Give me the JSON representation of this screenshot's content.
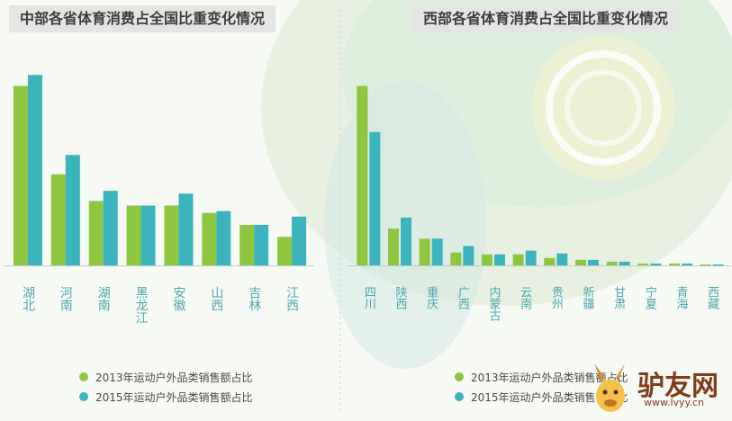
{
  "colors": {
    "series_2013": "#8ec63f",
    "series_2015": "#3bb4bd",
    "label": "#4fa8ae"
  },
  "chart_data": [
    {
      "type": "bar",
      "title": "中部各省体育消费占全国比重变化情况",
      "categories": [
        "湖北",
        "河南",
        "湖南",
        "黑龙江",
        "安徽",
        "山西",
        "吉林",
        "江西"
      ],
      "series": [
        {
          "name": "2013年运动户外品类销售额占比",
          "values": [
            19.5,
            9.9,
            7.0,
            6.5,
            6.5,
            5.7,
            4.4,
            3.1
          ]
        },
        {
          "name": "2015年运动户外品类销售额占比",
          "values": [
            20.7,
            12.0,
            8.1,
            6.5,
            7.8,
            5.9,
            4.4,
            5.3
          ]
        }
      ],
      "ylim": [
        0,
        22
      ],
      "grid": false,
      "legend": "bottom"
    },
    {
      "type": "bar",
      "title": "西部各省体育消费占全国比重变化情况",
      "categories": [
        "四川",
        "陕西",
        "重庆",
        "广西",
        "内蒙古",
        "云南",
        "贵州",
        "新疆",
        "甘肃",
        "宁夏",
        "青海",
        "西藏"
      ],
      "series": [
        {
          "name": "2013年运动户外品类销售额占比",
          "values": [
            19.5,
            4.0,
            2.9,
            1.4,
            1.2,
            1.2,
            0.8,
            0.6,
            0.4,
            0.2,
            0.2,
            0.1
          ]
        },
        {
          "name": "2015年运动户外品类销售额占比",
          "values": [
            14.5,
            5.2,
            2.9,
            2.1,
            1.2,
            1.6,
            1.3,
            0.6,
            0.4,
            0.2,
            0.2,
            0.1
          ]
        }
      ],
      "ylim": [
        0,
        22
      ],
      "grid": false,
      "legend": "bottom"
    }
  ],
  "watermark": {
    "brand": "驴友网",
    "url": "www.lvyy.cn"
  }
}
